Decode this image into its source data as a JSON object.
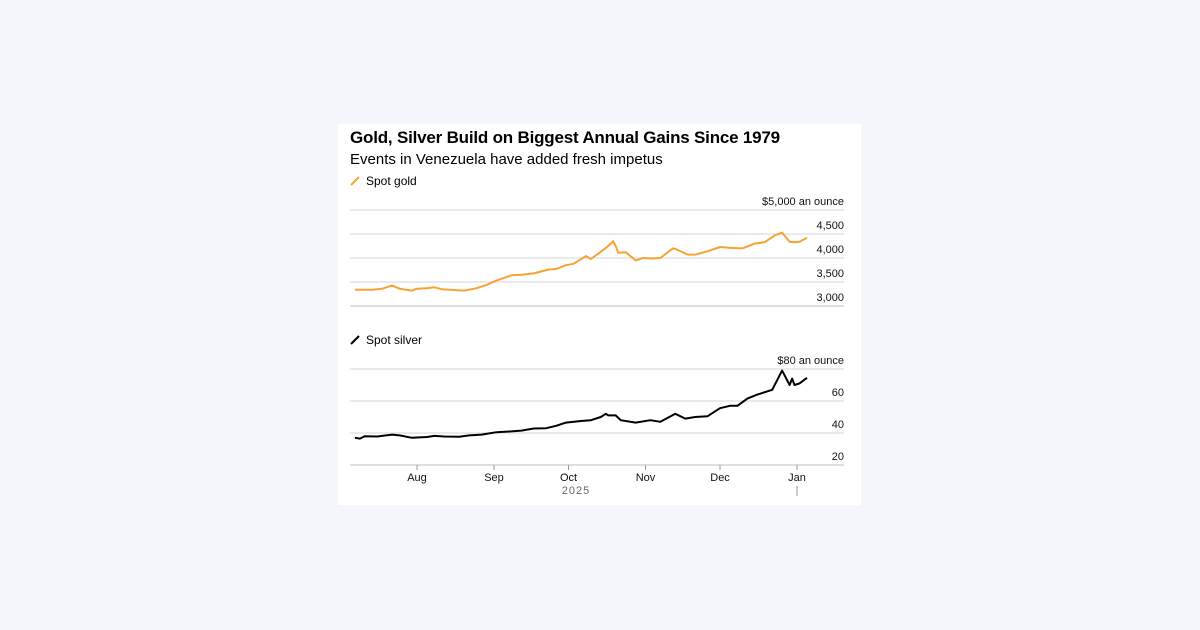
{
  "header": {
    "title": "Gold, Silver Build on Biggest Annual Gains Since 1979",
    "subtitle": "Events in Venezuela have added fresh impetus"
  },
  "chart_data": [
    {
      "type": "line",
      "series": [
        {
          "name": "Spot gold",
          "color": "#f7a235",
          "x": [
            "2025-07-07",
            "2025-07-14",
            "2025-07-18",
            "2025-07-22",
            "2025-07-25",
            "2025-07-30",
            "2025-08-01",
            "2025-08-05",
            "2025-08-08",
            "2025-08-11",
            "2025-08-15",
            "2025-08-20",
            "2025-08-25",
            "2025-08-29",
            "2025-09-02",
            "2025-09-08",
            "2025-09-12",
            "2025-09-17",
            "2025-09-23",
            "2025-09-26",
            "2025-09-30",
            "2025-10-03",
            "2025-10-08",
            "2025-10-10",
            "2025-10-14",
            "2025-10-17",
            "2025-10-19",
            "2025-10-20",
            "2025-10-21",
            "2025-10-24",
            "2025-10-28",
            "2025-10-31",
            "2025-11-04",
            "2025-11-07",
            "2025-11-12",
            "2025-11-13",
            "2025-11-18",
            "2025-11-21",
            "2025-11-26",
            "2025-12-01",
            "2025-12-05",
            "2025-12-10",
            "2025-12-15",
            "2025-12-19",
            "2025-12-23",
            "2025-12-26",
            "2025-12-29",
            "2025-12-31",
            "2026-01-02",
            "2026-01-05"
          ],
          "values": [
            3340,
            3340,
            3360,
            3430,
            3360,
            3320,
            3360,
            3370,
            3390,
            3350,
            3335,
            3320,
            3370,
            3440,
            3530,
            3640,
            3650,
            3680,
            3760,
            3770,
            3850,
            3880,
            4040,
            3980,
            4130,
            4250,
            4350,
            4250,
            4110,
            4120,
            3950,
            4000,
            3990,
            4000,
            4200,
            4190,
            4070,
            4070,
            4140,
            4230,
            4210,
            4200,
            4300,
            4330,
            4470,
            4530,
            4340,
            4330,
            4340,
            4420
          ]
        }
      ],
      "ylabel": "$5,000 an ounce",
      "yticks": [
        3000,
        3500,
        4000,
        4500,
        5000
      ],
      "ytick_labels": [
        "3,000",
        "3,500",
        "4,000",
        "4,500",
        "$5,000 an ounce"
      ],
      "ylim": [
        3000,
        5000
      ],
      "grid": true,
      "legend": "top-left"
    },
    {
      "type": "line",
      "series": [
        {
          "name": "Spot silver",
          "color": "#000000",
          "x": [
            "2025-07-07",
            "2025-07-09",
            "2025-07-11",
            "2025-07-16",
            "2025-07-22",
            "2025-07-25",
            "2025-07-30",
            "2025-08-05",
            "2025-08-08",
            "2025-08-12",
            "2025-08-18",
            "2025-08-22",
            "2025-08-27",
            "2025-09-02",
            "2025-09-08",
            "2025-09-12",
            "2025-09-17",
            "2025-09-22",
            "2025-09-26",
            "2025-09-30",
            "2025-10-06",
            "2025-10-10",
            "2025-10-14",
            "2025-10-16",
            "2025-10-17",
            "2025-10-20",
            "2025-10-22",
            "2025-10-28",
            "2025-11-03",
            "2025-11-07",
            "2025-11-13",
            "2025-11-17",
            "2025-11-21",
            "2025-11-26",
            "2025-12-01",
            "2025-12-05",
            "2025-12-08",
            "2025-12-12",
            "2025-12-16",
            "2025-12-22",
            "2025-12-26",
            "2025-12-29",
            "2025-12-30",
            "2025-12-31",
            "2026-01-02",
            "2026-01-05"
          ],
          "values": [
            37,
            36.5,
            38,
            37.8,
            39,
            38.5,
            37,
            37.5,
            38.2,
            37.8,
            37.6,
            38.5,
            39,
            40.5,
            41,
            41.5,
            42.8,
            43,
            44.5,
            46.5,
            47.5,
            48,
            50,
            52,
            51,
            51,
            48,
            46.5,
            48,
            47,
            52,
            49,
            50,
            50.5,
            55.5,
            57,
            57,
            61.5,
            64,
            67,
            79,
            70,
            74,
            70,
            71,
            74.5
          ]
        }
      ],
      "ylabel": "$80 an ounce",
      "yticks": [
        20,
        40,
        60,
        80
      ],
      "ytick_labels": [
        "20",
        "40",
        "60",
        "$80 an ounce"
      ],
      "ylim": [
        20,
        80
      ],
      "grid": true,
      "legend": "top-left",
      "xticks": [
        "Aug",
        "Sep",
        "Oct",
        "Nov",
        "Dec",
        "Jan"
      ],
      "xtick_dates": [
        "2025-08-01",
        "2025-09-01",
        "2025-10-01",
        "2025-11-01",
        "2025-12-01",
        "2026-01-01"
      ],
      "year_label": "2025"
    }
  ]
}
